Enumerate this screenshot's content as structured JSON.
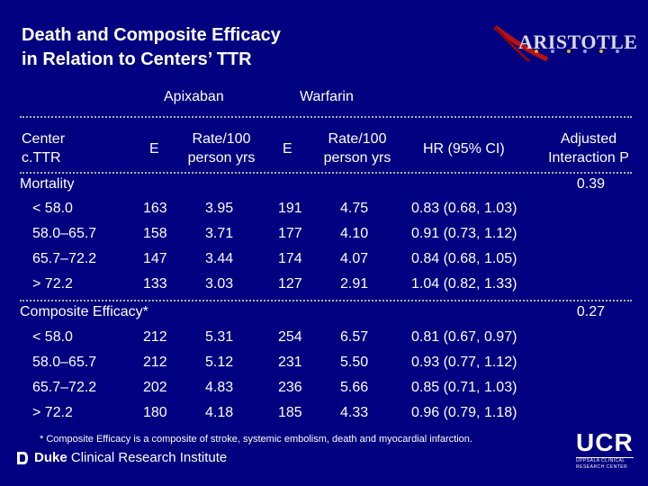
{
  "title": {
    "line1": "Death and Composite Efficacy",
    "line2": "in Relation to Centers’ TTR"
  },
  "logo": {
    "text": "ARISTOTLE"
  },
  "groups": {
    "apixaban": "Apixaban",
    "warfarin": "Warfarin"
  },
  "columns": {
    "center_line1": "Center",
    "center_line2": "c.TTR",
    "apix_events": "E",
    "apix_rate_line1": "Rate/100",
    "apix_rate_line2": "person yrs",
    "warf_events": "E",
    "warf_rate_line1": "Rate/100",
    "warf_rate_line2": "person yrs",
    "hr": "HR (95% CI)",
    "p_line1": "Adjusted",
    "p_line2": "Interaction P"
  },
  "mortality": {
    "label": "Mortality",
    "p": "0.39",
    "rows": [
      {
        "center": "< 58.0",
        "ae": "163",
        "ar": "3.95",
        "we": "191",
        "wr": "4.75",
        "hr": "0.83 (0.68, 1.03)"
      },
      {
        "center": "58.0–65.7",
        "ae": "158",
        "ar": "3.71",
        "we": "177",
        "wr": "4.10",
        "hr": "0.91 (0.73, 1.12)"
      },
      {
        "center": "65.7–72.2",
        "ae": "147",
        "ar": "3.44",
        "we": "174",
        "wr": "4.07",
        "hr": "0.84 (0.68, 1.05)"
      },
      {
        "center": "> 72.2",
        "ae": "133",
        "ar": "3.03",
        "we": "127",
        "wr": "2.91",
        "hr": "1.04 (0.82, 1.33)"
      }
    ]
  },
  "composite": {
    "label": "Composite Efficacy*",
    "p": "0.27",
    "rows": [
      {
        "center": "< 58.0",
        "ae": "212",
        "ar": "5.31",
        "we": "254",
        "wr": "6.57",
        "hr": "0.81 (0.67, 0.97)"
      },
      {
        "center": "58.0–65.7",
        "ae": "212",
        "ar": "5.12",
        "we": "231",
        "wr": "5.50",
        "hr": "0.93 (0.77, 1.12)"
      },
      {
        "center": "65.7–72.2",
        "ae": "202",
        "ar": "4.83",
        "we": "236",
        "wr": "5.66",
        "hr": "0.85 (0.71, 1.03)"
      },
      {
        "center": "> 72.2",
        "ae": "180",
        "ar": "4.18",
        "we": "185",
        "wr": "4.33",
        "hr": "0.96 (0.79, 1.18)"
      }
    ]
  },
  "footnote": "* Composite Efficacy is a composite of stroke, systemic embolism, death and myocardial infarction.",
  "duke": {
    "bold": "Duke",
    "rest": " Clinical Research Institute"
  },
  "ucr": {
    "big": "UCR",
    "small1": "UPPSALA CLINICAL",
    "small2": "RESEARCH CENTER"
  }
}
